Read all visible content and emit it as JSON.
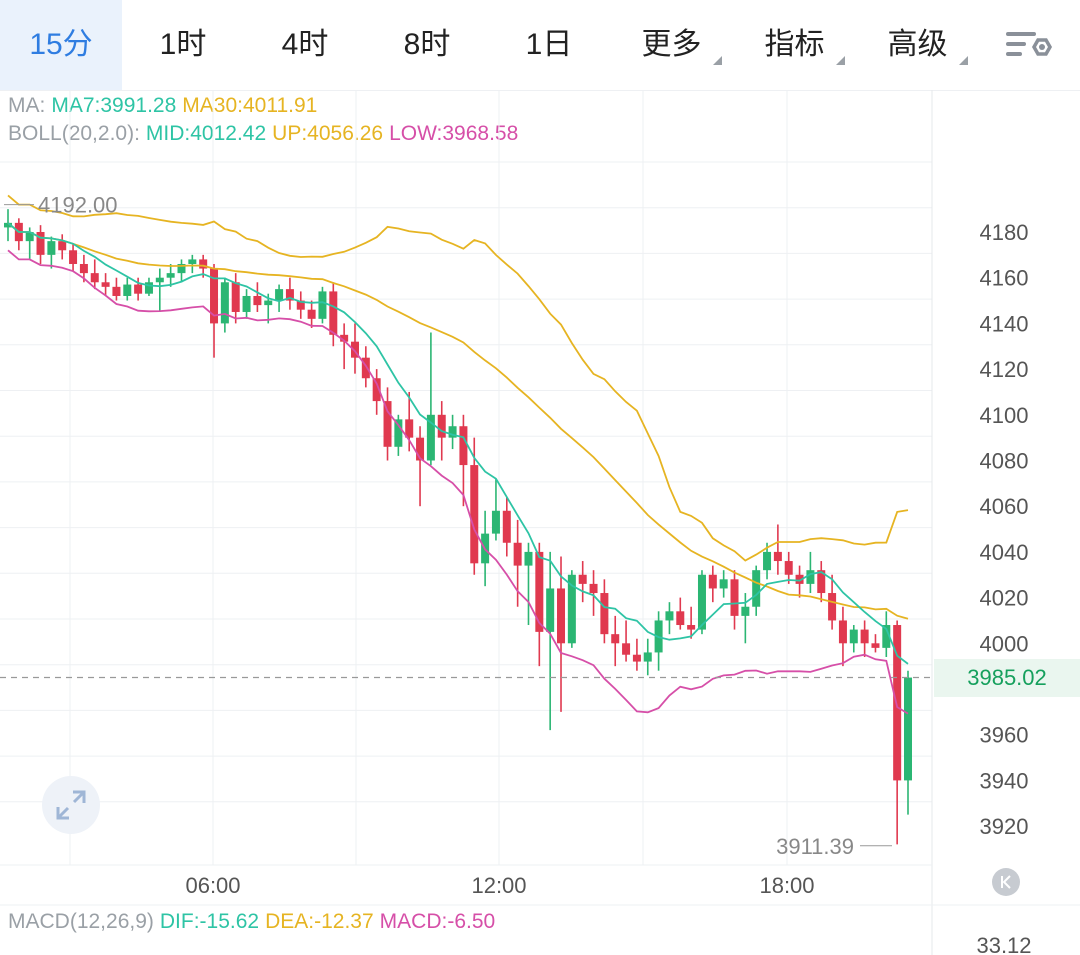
{
  "tabs": [
    {
      "label": "15分",
      "active": true
    },
    {
      "label": "1时",
      "active": false
    },
    {
      "label": "4时",
      "active": false
    },
    {
      "label": "8时",
      "active": false
    },
    {
      "label": "1日",
      "active": false
    },
    {
      "label": "更多",
      "dropdown": true
    },
    {
      "label": "指标",
      "dropdown": true
    },
    {
      "label": "高级",
      "dropdown": true
    }
  ],
  "settings_icon": "chart-settings-icon",
  "ma_info": {
    "label": "MA:",
    "ma7": "MA7:3991.28",
    "ma30": "MA30:4011.91"
  },
  "boll_info": {
    "label": "BOLL(20,2.0):",
    "mid": "MID:4012.42",
    "up": "UP:4056.26",
    "low": "LOW:3968.58"
  },
  "macd_info": {
    "label": "MACD(12,26,9)",
    "dif": "DIF:-15.62",
    "dea": "DEA:-12.37",
    "macd": "MACD:-6.50"
  },
  "macd_axis_top": "33.12",
  "current_price": "3985.02",
  "high_marker": "4192.00",
  "low_marker": "3911.39",
  "colors": {
    "up": "#2bb673",
    "down": "#e0394f",
    "ma7": "#2ec4a5",
    "ma30": "#e6b422",
    "boll_low": "#d64fa8",
    "accent": "#2f7de1"
  },
  "chart_data": {
    "type": "candlestick",
    "y_ticks": [
      4180,
      4160,
      4140,
      4120,
      4100,
      4080,
      4060,
      4040,
      4020,
      4000,
      3980,
      3960,
      3940,
      3920
    ],
    "x_ticks": [
      "06:00",
      "12:00",
      "18:00"
    ],
    "current_price": 3985.02,
    "session_high": 4192.0,
    "session_low": 3911.39,
    "ma7_last": 3991.28,
    "ma30_last": 4011.91,
    "boll_mid_last": 4012.42,
    "boll_up_last": 4056.26,
    "boll_low_last": 3968.58,
    "candles_ohlc": [
      [
        4182,
        4190,
        4176,
        4184
      ],
      [
        4184,
        4186,
        4172,
        4176
      ],
      [
        4176,
        4182,
        4168,
        4180
      ],
      [
        4180,
        4183,
        4166,
        4170
      ],
      [
        4170,
        4178,
        4164,
        4176
      ],
      [
        4176,
        4179,
        4168,
        4172
      ],
      [
        4172,
        4175,
        4163,
        4166
      ],
      [
        4166,
        4170,
        4158,
        4162
      ],
      [
        4162,
        4168,
        4155,
        4158
      ],
      [
        4158,
        4162,
        4152,
        4156
      ],
      [
        4156,
        4160,
        4150,
        4152
      ],
      [
        4152,
        4160,
        4150,
        4157
      ],
      [
        4157,
        4160,
        4150,
        4153
      ],
      [
        4153,
        4160,
        4152,
        4158
      ],
      [
        4158,
        4164,
        4145,
        4160
      ],
      [
        4160,
        4166,
        4156,
        4162
      ],
      [
        4162,
        4168,
        4158,
        4166
      ],
      [
        4166,
        4170,
        4162,
        4168
      ],
      [
        4168,
        4170,
        4160,
        4164
      ],
      [
        4164,
        4166,
        4125,
        4140
      ],
      [
        4140,
        4160,
        4136,
        4158
      ],
      [
        4158,
        4162,
        4140,
        4145
      ],
      [
        4145,
        4155,
        4142,
        4152
      ],
      [
        4152,
        4158,
        4145,
        4148
      ],
      [
        4148,
        4153,
        4140,
        4150
      ],
      [
        4150,
        4157,
        4145,
        4155
      ],
      [
        4155,
        4160,
        4146,
        4150
      ],
      [
        4150,
        4154,
        4142,
        4146
      ],
      [
        4146,
        4150,
        4138,
        4142
      ],
      [
        4142,
        4156,
        4140,
        4154
      ],
      [
        4154,
        4158,
        4130,
        4135
      ],
      [
        4135,
        4140,
        4120,
        4132
      ],
      [
        4132,
        4140,
        4118,
        4125
      ],
      [
        4125,
        4130,
        4112,
        4116
      ],
      [
        4116,
        4120,
        4100,
        4106
      ],
      [
        4106,
        4112,
        4080,
        4086
      ],
      [
        4086,
        4100,
        4082,
        4098
      ],
      [
        4098,
        4110,
        4084,
        4090
      ],
      [
        4090,
        4095,
        4060,
        4080
      ],
      [
        4080,
        4136,
        4078,
        4100
      ],
      [
        4100,
        4106,
        4080,
        4090
      ],
      [
        4090,
        4100,
        4085,
        4095
      ],
      [
        4095,
        4100,
        4060,
        4078
      ],
      [
        4078,
        4090,
        4030,
        4035
      ],
      [
        4035,
        4058,
        4025,
        4048
      ],
      [
        4048,
        4072,
        4045,
        4058
      ],
      [
        4058,
        4064,
        4038,
        4044
      ],
      [
        4044,
        4054,
        4016,
        4034
      ],
      [
        4034,
        4044,
        4008,
        4040
      ],
      [
        4040,
        4044,
        3990,
        4005
      ],
      [
        4005,
        4040,
        3962,
        4024
      ],
      [
        4024,
        4038,
        3970,
        4000
      ],
      [
        4000,
        4032,
        3998,
        4030
      ],
      [
        4030,
        4036,
        4018,
        4026
      ],
      [
        4026,
        4032,
        4012,
        4022
      ],
      [
        4022,
        4028,
        4000,
        4004
      ],
      [
        4004,
        4012,
        3990,
        4000
      ],
      [
        4000,
        4010,
        3992,
        3995
      ],
      [
        3995,
        4002,
        3988,
        3992
      ],
      [
        3992,
        4002,
        3986,
        3996
      ],
      [
        3996,
        4014,
        3988,
        4010
      ],
      [
        4010,
        4018,
        4004,
        4014
      ],
      [
        4014,
        4020,
        4006,
        4008
      ],
      [
        4008,
        4016,
        4002,
        4006
      ],
      [
        4006,
        4032,
        4004,
        4030
      ],
      [
        4030,
        4034,
        4018,
        4024
      ],
      [
        4024,
        4032,
        4020,
        4028
      ],
      [
        4028,
        4032,
        4006,
        4012
      ],
      [
        4012,
        4022,
        4000,
        4016
      ],
      [
        4016,
        4034,
        4012,
        4032
      ],
      [
        4032,
        4044,
        4028,
        4040
      ],
      [
        4040,
        4052,
        4030,
        4036
      ],
      [
        4036,
        4040,
        4026,
        4030
      ],
      [
        4030,
        4034,
        4020,
        4026
      ],
      [
        4026,
        4040,
        4022,
        4032
      ],
      [
        4032,
        4036,
        4018,
        4022
      ],
      [
        4022,
        4030,
        4006,
        4010
      ],
      [
        4010,
        4016,
        3990,
        4000
      ],
      [
        4000,
        4008,
        3996,
        4006
      ],
      [
        4006,
        4010,
        3994,
        4000
      ],
      [
        4000,
        4004,
        3996,
        3998
      ],
      [
        3998,
        4014,
        3994,
        4008
      ],
      [
        4008,
        4010,
        3912,
        3940
      ],
      [
        3940,
        3988,
        3925,
        3985
      ]
    ]
  }
}
